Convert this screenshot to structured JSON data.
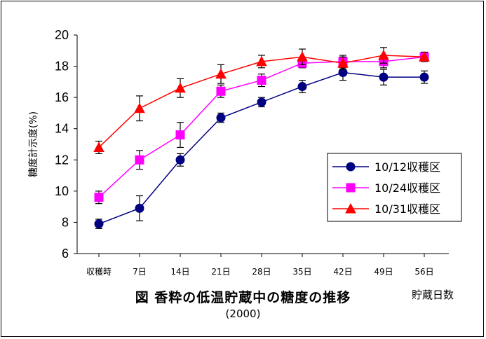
{
  "chart_data": {
    "type": "line",
    "title": "図 香粋の低温貯蔵中の糖度の推移",
    "subtitle": "(2000)",
    "xlabel": "貯蔵日数",
    "ylabel": "糖度計示度(%)",
    "categories": [
      "収穫時",
      "7日",
      "14日",
      "21日",
      "28日",
      "35日",
      "42日",
      "49日",
      "56日"
    ],
    "ylim": [
      6,
      20
    ],
    "yticks": [
      "6",
      "8",
      "10",
      "12",
      "14",
      "16",
      "18",
      "20"
    ],
    "grid": false,
    "legend_position": "right",
    "error_bars": true,
    "series": [
      {
        "name": "10/12収穫区",
        "color": "#000080",
        "marker": "circle",
        "values": [
          7.9,
          8.9,
          12.0,
          14.7,
          15.7,
          16.7,
          17.6,
          17.3,
          17.3
        ],
        "errors": [
          0.3,
          0.8,
          0.4,
          0.3,
          0.3,
          0.4,
          0.5,
          0.5,
          0.4
        ]
      },
      {
        "name": "10/24収穫区",
        "color": "#ff00ff",
        "marker": "square",
        "values": [
          9.6,
          12.0,
          13.6,
          16.4,
          17.1,
          18.2,
          18.3,
          18.3,
          18.6
        ],
        "errors": [
          0.4,
          0.6,
          0.8,
          0.4,
          0.4,
          0.3,
          0.4,
          0.4,
          0.3
        ]
      },
      {
        "name": "10/31収穫区",
        "color": "#ff0000",
        "marker": "triangle",
        "values": [
          12.8,
          15.3,
          16.6,
          17.5,
          18.3,
          18.6,
          18.2,
          18.7,
          18.6
        ],
        "errors": [
          0.4,
          0.8,
          0.6,
          0.6,
          0.4,
          0.5,
          0.4,
          0.5,
          0.3
        ]
      }
    ]
  }
}
